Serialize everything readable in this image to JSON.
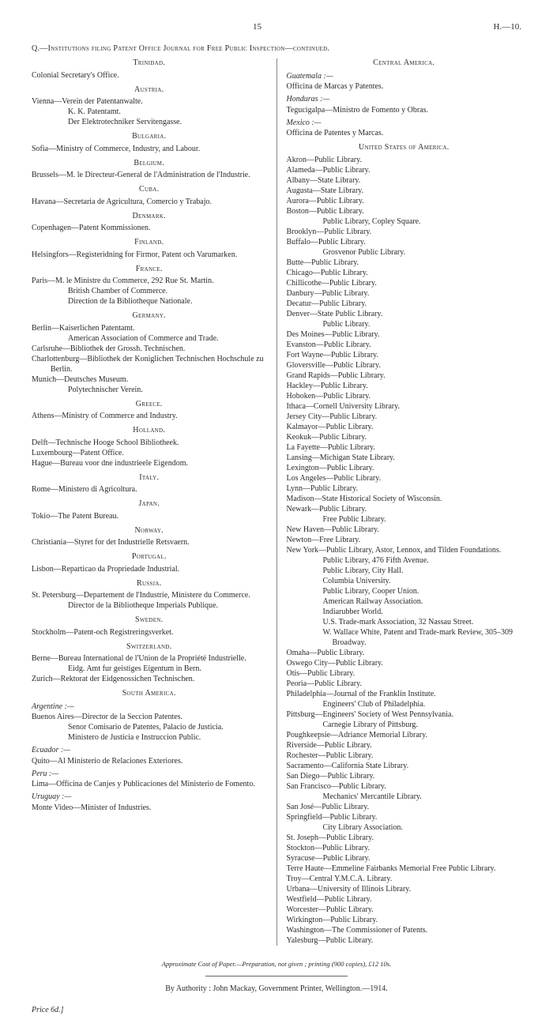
{
  "header": {
    "page_no": "15",
    "code": "H.—10."
  },
  "section_title": "Q.—Institutions filing Patent Office Journal for Free Public Inspection—continued.",
  "left": {
    "groups": [
      {
        "region": "Trinidad.",
        "first": true,
        "entries": [
          {
            "t": "Colonial Secretary's Office."
          }
        ]
      },
      {
        "region": "Austria.",
        "entries": [
          {
            "t": "Vienna—Verein der Patentanwalte."
          },
          {
            "sub": "K. K. Patentamt."
          },
          {
            "sub": "Der Elektrotechniker Servitengasse."
          }
        ]
      },
      {
        "region": "Bulgaria.",
        "entries": [
          {
            "t": "Sofia—Ministry of Commerce, Industry, and Labour."
          }
        ]
      },
      {
        "region": "Belgium.",
        "entries": [
          {
            "t": "Brussels—M. le Directeur-General de l'Administration de l'Industrie."
          }
        ]
      },
      {
        "region": "Cuba.",
        "entries": [
          {
            "t": "Havana—Secretaria de Agricultura, Comercio y Trabajo."
          }
        ]
      },
      {
        "region": "Denmark.",
        "entries": [
          {
            "t": "Copenhagen—Patent Kommissionen."
          }
        ]
      },
      {
        "region": "Finland.",
        "entries": [
          {
            "t": "Helsingfors—Registeridning for Firmor, Patent och Varumarken."
          }
        ]
      },
      {
        "region": "France.",
        "entries": [
          {
            "t": "Paris—M. le Ministre du Commerce, 292 Rue St. Martin."
          },
          {
            "sub": "British Chamber of Commerce."
          },
          {
            "sub": "Direction de la Bibliotheque Nationale."
          }
        ]
      },
      {
        "region": "Germany.",
        "entries": [
          {
            "t": "Berlin—Kaiserlichen Patentamt."
          },
          {
            "sub": "American Association of Commerce and Trade."
          },
          {
            "t": "Carlsruhe—Bibliothek der Grossh. Technischen."
          },
          {
            "t": "Charlottenburg—Bibliothek der Koniglichen Technischen Hochschule zu Berlin."
          },
          {
            "t": "Munich—Deutsches Museum."
          },
          {
            "sub": "Polytechnischer Verein."
          }
        ]
      },
      {
        "region": "Greece.",
        "entries": [
          {
            "t": "Athens—Ministry of Commerce and Industry."
          }
        ]
      },
      {
        "region": "Holland.",
        "entries": [
          {
            "t": "Delft—Technische Hooge School Bibliotheek."
          },
          {
            "t": "Luxembourg—Patent Office."
          },
          {
            "t": "Hague—Bureau voor dne industrieele Eigendom."
          }
        ]
      },
      {
        "region": "Italy.",
        "entries": [
          {
            "t": "Rome—Ministero di Agricoltura."
          }
        ]
      },
      {
        "region": "Japan.",
        "entries": [
          {
            "t": "Tokio—The Patent Bureau."
          }
        ]
      },
      {
        "region": "Norway.",
        "entries": [
          {
            "t": "Christiania—Styret for det Industrielle Retsvaern."
          }
        ]
      },
      {
        "region": "Portugal.",
        "entries": [
          {
            "t": "Lisbon—Reparticao da Propriedade Industrial."
          }
        ]
      },
      {
        "region": "Russia.",
        "entries": [
          {
            "t": "St. Petersburg—Departement de l'Industrie, Ministere du Commerce."
          },
          {
            "sub": "Director de la Bibliotheque Imperials Publique."
          }
        ]
      },
      {
        "region": "Sweden.",
        "entries": [
          {
            "t": "Stockholm—Patent-och Registreringsverket."
          }
        ]
      },
      {
        "region": "Switzerland.",
        "entries": [
          {
            "t": "Berne—Bureau International de l'Union de la Propriété Industrielle."
          },
          {
            "sub": "Eidg. Amt fur geistiges Eigentum in Bern."
          },
          {
            "t": "Zurich—Rektorat der Eidgenossichen Technischen."
          }
        ]
      },
      {
        "region": "South America.",
        "entries": [
          {
            "ctry": "Argentine :—"
          },
          {
            "t": "Buenos Aires—Director de la Seccion Patentes."
          },
          {
            "sub": "Senor Comisario de Patentes, Palacio de Justicia."
          },
          {
            "sub": "Ministero de Justicia e Instruccion Public."
          },
          {
            "ctry": "Ecuador :—"
          },
          {
            "t": "Quito—Al Ministerio de Relaciones Exteriores."
          },
          {
            "ctry": "Peru :—"
          },
          {
            "t": "Lima—Officina de Canjes y Publicaciones del Ministerio de Fomento."
          },
          {
            "ctry": "Uruguay :—"
          },
          {
            "t": "Monte Video—Minister of Industries."
          }
        ]
      }
    ]
  },
  "right": {
    "groups": [
      {
        "region": "Central America.",
        "first": true,
        "entries": [
          {
            "ctry": "Guatemala :—"
          },
          {
            "t": "Officina de Marcas y Patentes."
          },
          {
            "ctry": "Honduras :—"
          },
          {
            "t": "Tegucigalpa—Ministro de Fomento y Obras."
          },
          {
            "ctry": "Mexico :—"
          },
          {
            "t": "Officina de Patentes y Marcas."
          }
        ]
      },
      {
        "region": "United States of America.",
        "entries": [
          {
            "t": "Akron—Public Library."
          },
          {
            "t": "Alameda—Public Library."
          },
          {
            "t": "Albany—State Library."
          },
          {
            "t": "Augusta—State Library."
          },
          {
            "t": "Aurora—Public Library."
          },
          {
            "t": "Boston—Public Library."
          },
          {
            "sub": "Public Library, Copley Square."
          },
          {
            "t": "Brooklyn—Public Library."
          },
          {
            "t": "Buffalo—Public Library."
          },
          {
            "sub": "Grosvenor Public Library."
          },
          {
            "t": "Butte—Public Library."
          },
          {
            "t": "Chicago—Public Library."
          },
          {
            "t": "Chillicothe—Public Library."
          },
          {
            "t": "Danbury—Public Library."
          },
          {
            "t": "Decatur—Public Library."
          },
          {
            "t": "Denver—State Public Library."
          },
          {
            "sub": "Public Library."
          },
          {
            "t": "Des Moines—Public Library."
          },
          {
            "t": "Evanston—Public Library."
          },
          {
            "t": "Fort Wayne—Public Library."
          },
          {
            "t": "Gloversville—Public Library."
          },
          {
            "t": "Grand Rapids—Public Library."
          },
          {
            "t": "Hackley—Public Library."
          },
          {
            "t": "Hoboken—Public Library."
          },
          {
            "t": "Ithaca—Cornell University Library."
          },
          {
            "t": "Jersey City—Public Library."
          },
          {
            "t": "Kalmayor—Public Library."
          },
          {
            "t": "Keokuk—Public Library."
          },
          {
            "t": "La Fayette—Public Library."
          },
          {
            "t": "Lansing—Michigan State Library."
          },
          {
            "t": "Lexington—Public Library."
          },
          {
            "t": "Los Angeles—Public Library."
          },
          {
            "t": "Lynn—Public Library."
          },
          {
            "t": "Madison—State Historical Society of Wisconsin."
          },
          {
            "t": "Newark—Public Library."
          },
          {
            "sub": "Free Public Library."
          },
          {
            "t": "New Haven—Public Library."
          },
          {
            "t": "Newton—Free Library."
          },
          {
            "t": "New York—Public Library, Astor, Lennox, and Tilden Foundations."
          },
          {
            "sub": "Public Library, 476 Fifth Avenue."
          },
          {
            "sub": "Public Library, City Hall."
          },
          {
            "sub": "Columbia University."
          },
          {
            "sub": "Public Library, Cooper Union."
          },
          {
            "sub": "American Railway Association."
          },
          {
            "sub": "Indiarubber World."
          },
          {
            "sub": "U.S. Trade-mark Association, 32 Nassau Street."
          },
          {
            "sub": "W. Wallace White, Patent and Trade-mark Review, 305–309 Broadway."
          },
          {
            "t": "Omaha—Public Library."
          },
          {
            "t": "Oswego City—Public Library."
          },
          {
            "t": "Otis—Public Library."
          },
          {
            "t": "Peoria—Public Library."
          },
          {
            "t": "Philadelphia—Journal of the Franklin Institute."
          },
          {
            "sub": "Engineers' Club of Philadelphia."
          },
          {
            "t": "Pittsburg—Engineers' Society of West Pennsylvania."
          },
          {
            "sub": "Carnegie Library of Pittsburg."
          },
          {
            "t": "Poughkeepsie—Adriance Memorial Library."
          },
          {
            "t": "Riverside—Public Library."
          },
          {
            "t": "Rochester—Public Library."
          },
          {
            "t": "Sacramento—California State Library."
          },
          {
            "t": "San Diego—Public Library."
          },
          {
            "t": "San Francisco—Public Library."
          },
          {
            "sub": "Mechanics' Mercantile Library."
          },
          {
            "t": "San José—Public Library."
          },
          {
            "t": "Springfield—Public Library."
          },
          {
            "sub": "City Library Association."
          },
          {
            "t": "St. Joseph—Public Library."
          },
          {
            "t": "Stockton—Public Library."
          },
          {
            "t": "Syracuse—Public Library."
          },
          {
            "t": "Terre Haute—Emmeline Fairbanks Memorial Free Public Library."
          },
          {
            "t": "Troy—Central Y.M.C.A. Library."
          },
          {
            "t": "Urbana—University of Illinois Library."
          },
          {
            "t": "Westfield—Public Library."
          },
          {
            "t": "Worcester—Public Library."
          },
          {
            "t": "Wirkington—Public Library."
          },
          {
            "t": "Washington—The Commissioner of Patents."
          },
          {
            "t": "Yalesburg—Public Library."
          }
        ]
      }
    ]
  },
  "footer": {
    "cost_line": "Approximate Cost of Paper.—Preparation, not given ; printing (900 copies), £12 10s.",
    "authority": "By Authority : John Mackay, Government Printer, Wellington.—1914.",
    "price": "Price 6d.]"
  }
}
